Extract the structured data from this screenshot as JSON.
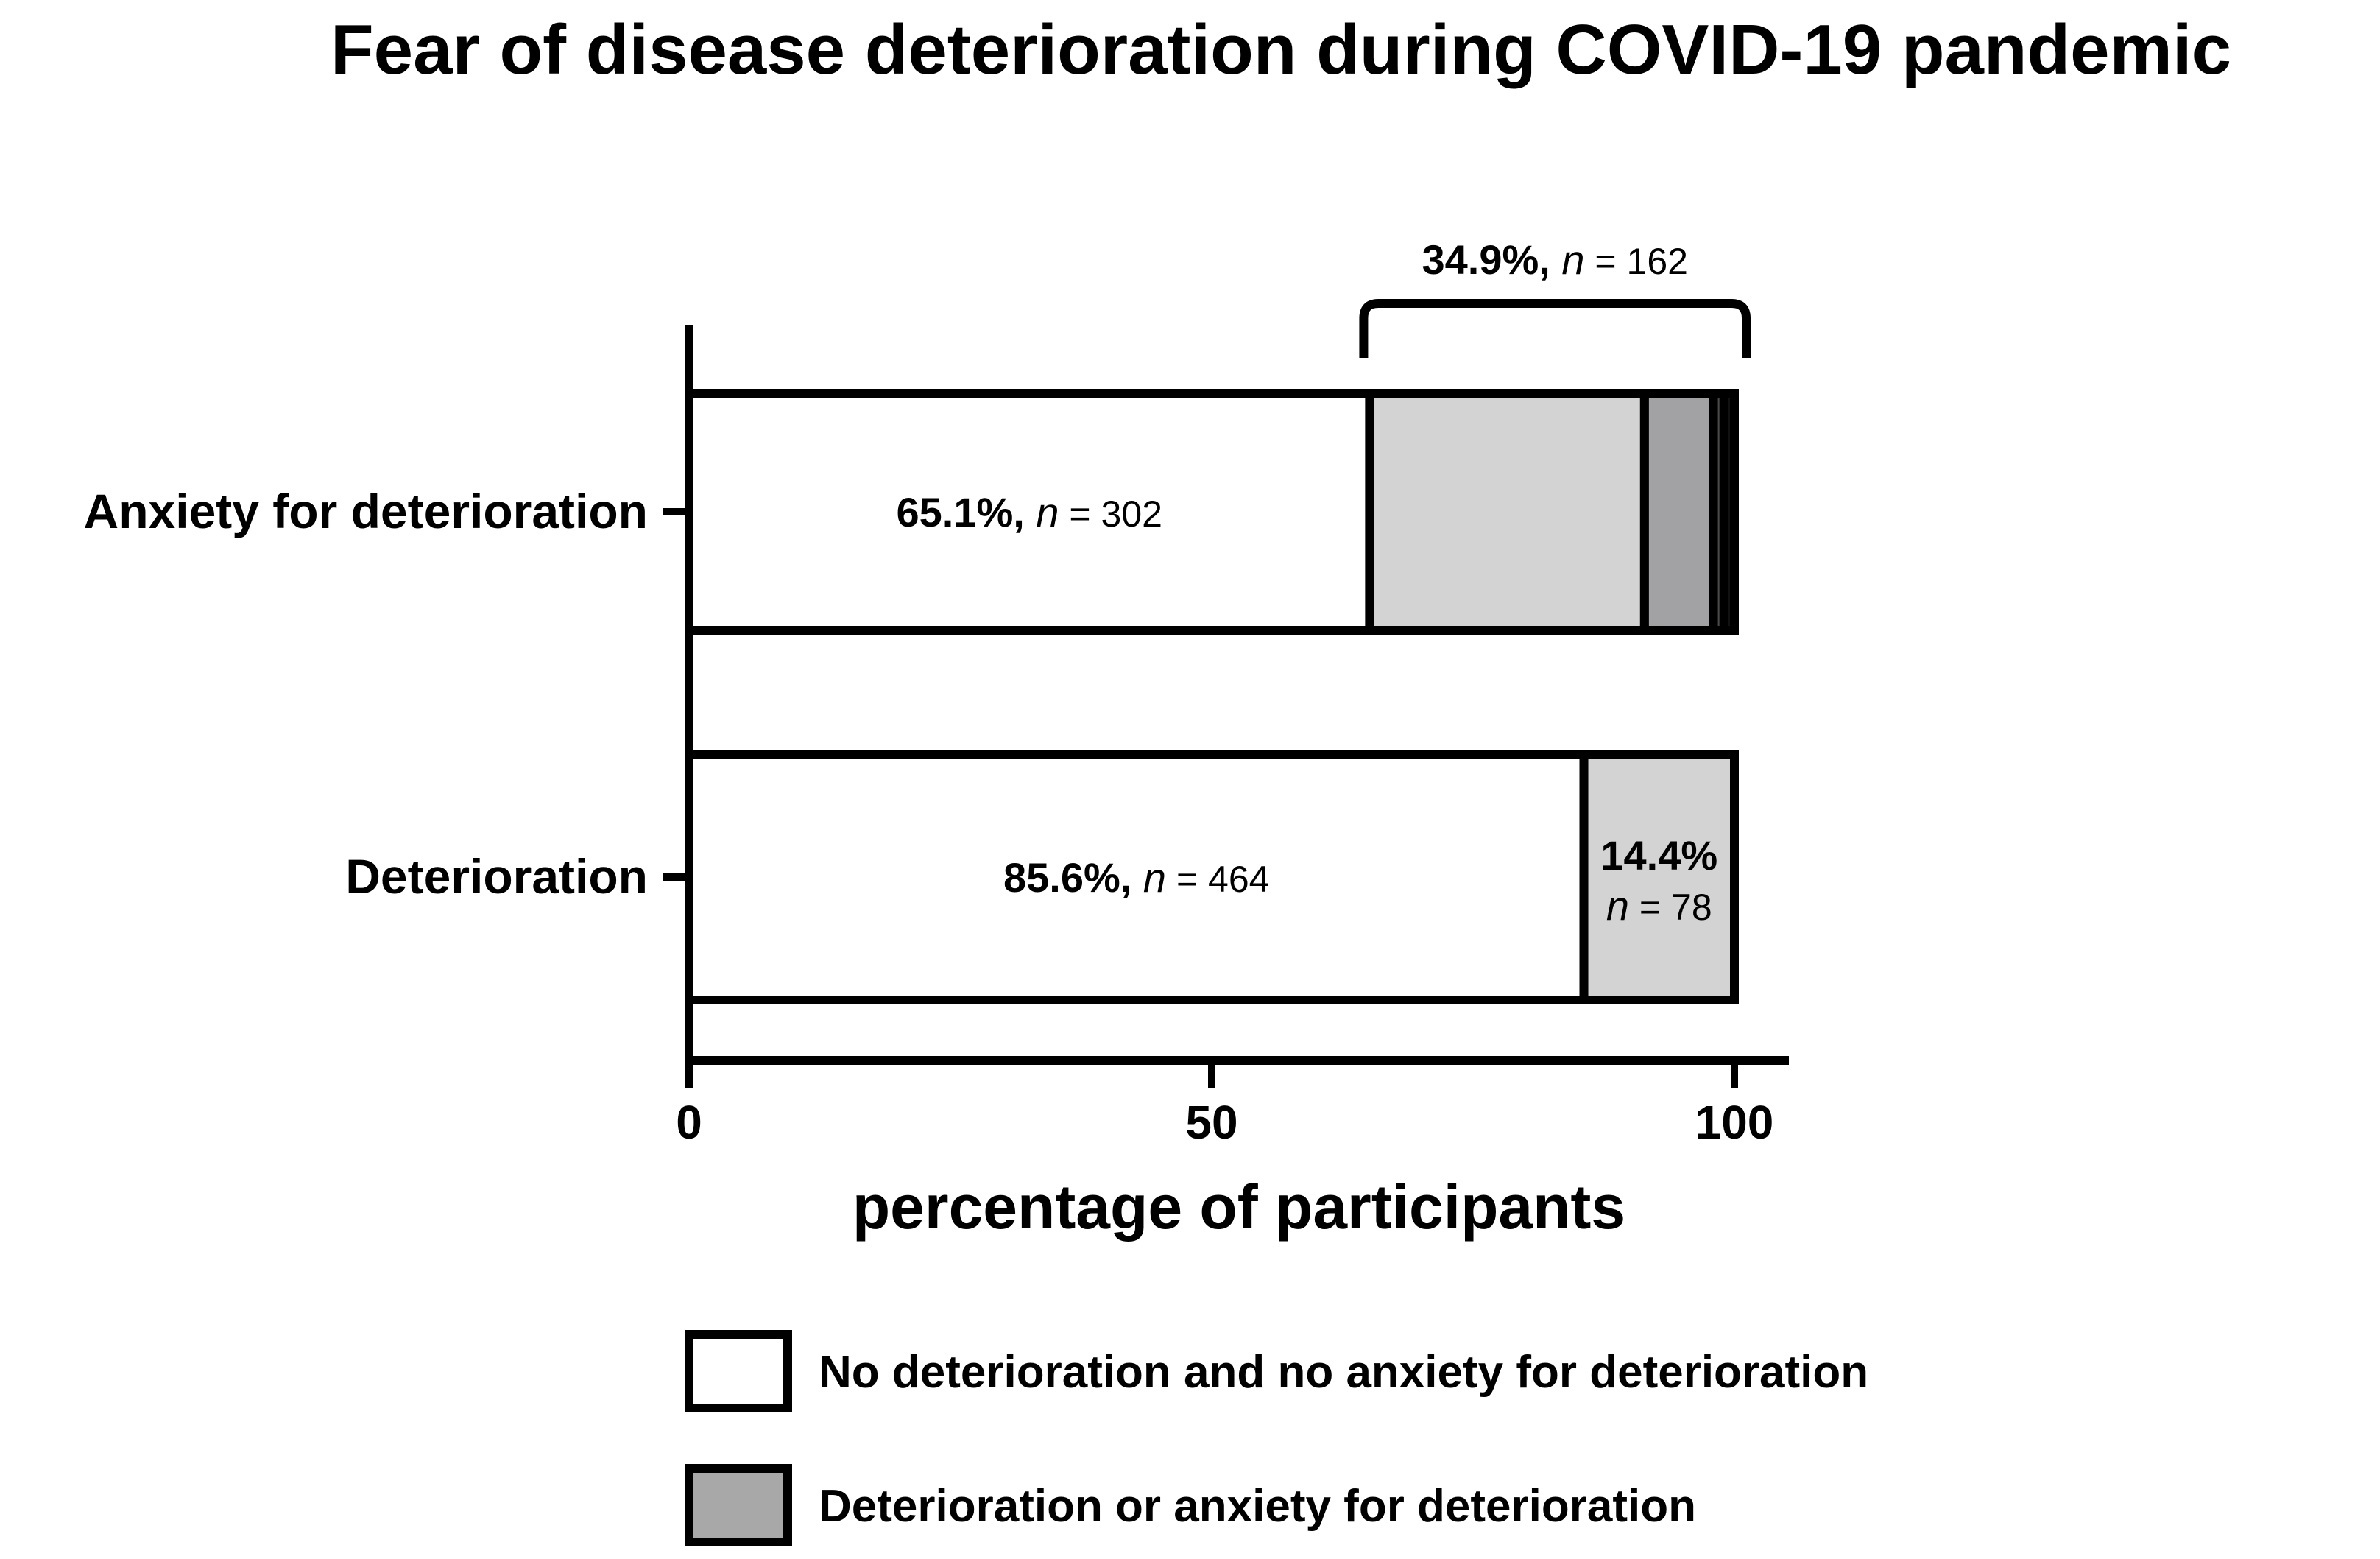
{
  "chart_data": {
    "type": "bar",
    "orientation": "horizontal",
    "stacked": true,
    "title": "Fear of disease deterioration during COVID-19 pandemic",
    "xlabel": "percentage of participants",
    "ylabel": "",
    "xlim": [
      0,
      100
    ],
    "xticks": [
      0,
      50,
      100
    ],
    "tick_labels": [
      "0",
      "50",
      "100"
    ],
    "categories": [
      "Anxiety for deterioration",
      "Deterioration"
    ],
    "bars": [
      {
        "category": "Anxiety for deterioration",
        "segments": [
          {
            "value": 65.1,
            "color": "#ffffff",
            "label_pct": "65.1%,",
            "label_n": "n",
            "label_count": "= 302"
          },
          {
            "value": 26.3,
            "color": "#d3d3d3"
          },
          {
            "value": 6.6,
            "color": "#a2a2a4"
          },
          {
            "value": 1.0,
            "color": "#4a4a4c"
          },
          {
            "value": 1.0,
            "color": "#111111"
          }
        ],
        "bracket": {
          "from": 65.1,
          "to": 100,
          "label_pct": "34.9%,",
          "label_n": "n",
          "label_count": "= 162"
        }
      },
      {
        "category": "Deterioration",
        "segments": [
          {
            "value": 85.6,
            "color": "#ffffff",
            "label_pct": "85.6%,",
            "label_n": "n",
            "label_count": "= 464"
          },
          {
            "value": 14.4,
            "color": "#d3d3d3",
            "label_pct": "14.4%",
            "label_n": "n",
            "label_count": "= 78"
          }
        ]
      }
    ],
    "legend": [
      {
        "label": "No deterioration and no anxiety for deterioration",
        "color": "#ffffff"
      },
      {
        "label": "Deterioration or anxiety for deterioration",
        "color": "#a9a8a8"
      }
    ],
    "legend_position": "bottom-center",
    "grid": false
  }
}
